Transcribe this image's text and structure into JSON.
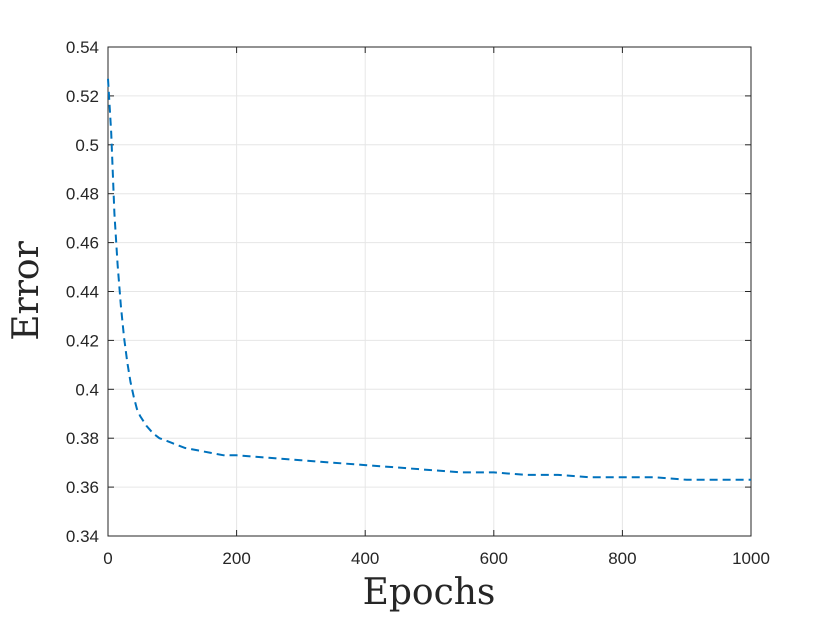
{
  "chart_data": {
    "type": "line",
    "xlabel": "Epochs",
    "ylabel": "Error",
    "xlim": [
      0,
      1000
    ],
    "ylim": [
      0.34,
      0.54
    ],
    "xticks": [
      0,
      200,
      400,
      600,
      800,
      1000
    ],
    "xtick_labels": [
      "0",
      "200",
      "400",
      "600",
      "800",
      "1000"
    ],
    "yticks": [
      0.34,
      0.36,
      0.38,
      0.4,
      0.42,
      0.44,
      0.46,
      0.48,
      0.5,
      0.52,
      0.54
    ],
    "ytick_labels": [
      "0.34",
      "0.36",
      "0.38",
      "0.4",
      "0.42",
      "0.44",
      "0.46",
      "0.48",
      "0.5",
      "0.52",
      "0.54"
    ],
    "grid": true,
    "line_color": "#0072BD",
    "line_style": "dashed",
    "series": [
      {
        "x": [
          0,
          5,
          10,
          15,
          20,
          25,
          30,
          35,
          40,
          45,
          50,
          60,
          70,
          80,
          90,
          100,
          120,
          140,
          160,
          180,
          200,
          250,
          300,
          350,
          400,
          450,
          500,
          550,
          600,
          650,
          700,
          750,
          800,
          850,
          900,
          950,
          1000
        ],
        "y": [
          0.527,
          0.505,
          0.472,
          0.451,
          0.434,
          0.421,
          0.411,
          0.403,
          0.397,
          0.392,
          0.389,
          0.385,
          0.382,
          0.38,
          0.379,
          0.378,
          0.376,
          0.375,
          0.374,
          0.373,
          0.373,
          0.372,
          0.371,
          0.37,
          0.369,
          0.368,
          0.367,
          0.366,
          0.366,
          0.365,
          0.365,
          0.364,
          0.364,
          0.364,
          0.363,
          0.363,
          0.363
        ]
      }
    ]
  }
}
